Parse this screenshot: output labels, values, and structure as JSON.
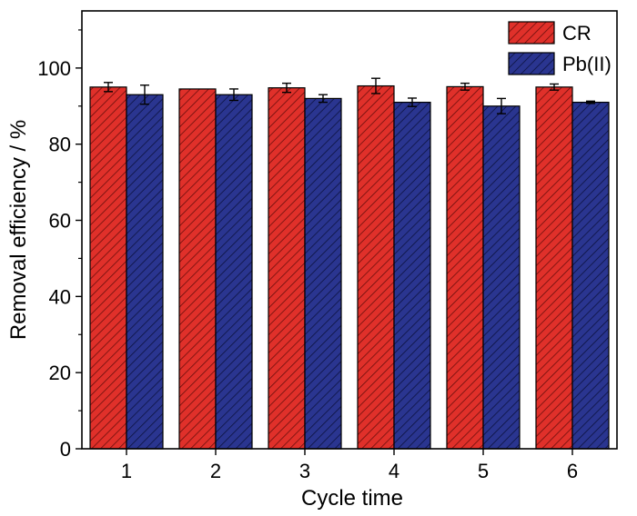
{
  "chart_data": {
    "type": "bar",
    "xlabel": "Cycle time",
    "ylabel": "Removal efficiency / %",
    "categories": [
      "1",
      "2",
      "3",
      "4",
      "5",
      "6"
    ],
    "ylim": [
      0,
      115
    ],
    "yticks": [
      0,
      20,
      40,
      60,
      80,
      100
    ],
    "grid": false,
    "legend_position": "top-right",
    "series": [
      {
        "name": "CR",
        "color": "#e0302a",
        "hatch_color": "#6b0f0c",
        "values": [
          95.0,
          94.5,
          94.8,
          95.3,
          95.1,
          95.0
        ],
        "errors": [
          1.2,
          0.0,
          1.2,
          2.0,
          0.9,
          0.8
        ]
      },
      {
        "name": "Pb(II)",
        "color": "#2a3590",
        "hatch_color": "#0c1240",
        "values": [
          93.0,
          93.0,
          92.0,
          91.0,
          90.0,
          91.0
        ],
        "errors": [
          2.5,
          1.5,
          1.0,
          1.1,
          2.0,
          0.3
        ]
      }
    ]
  }
}
